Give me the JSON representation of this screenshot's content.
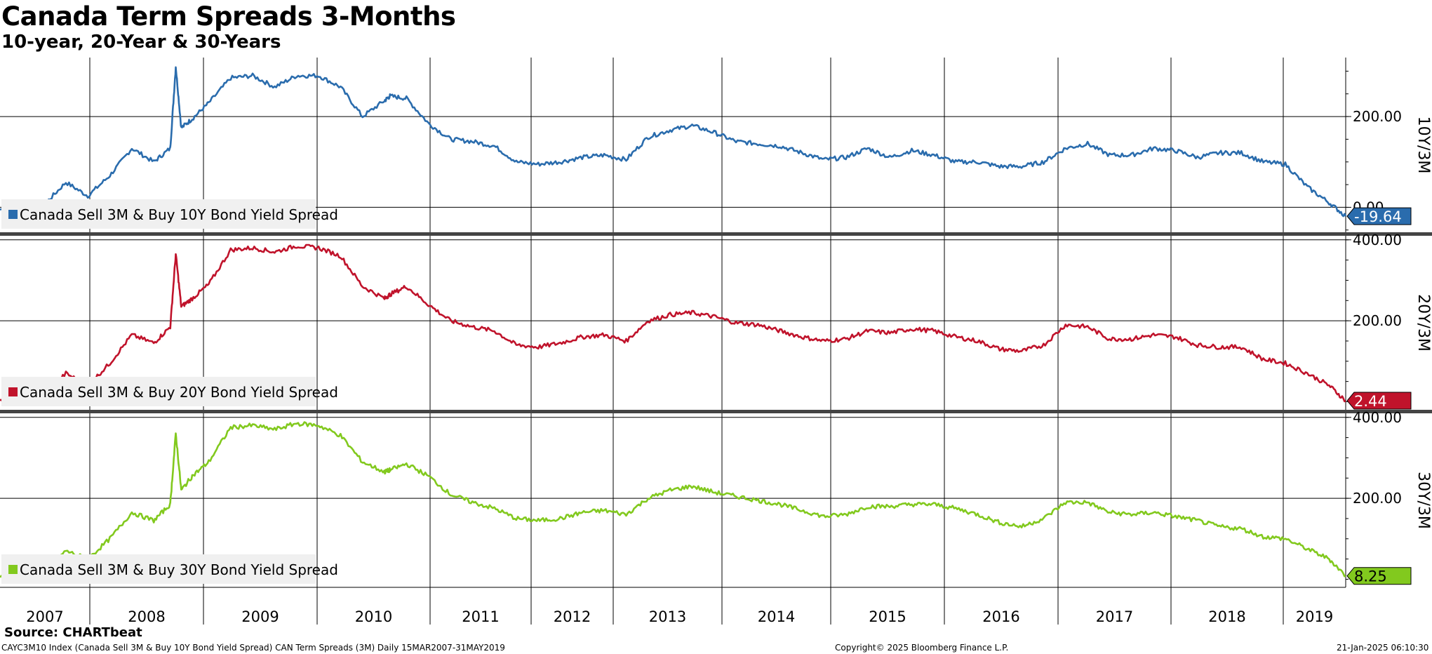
{
  "header": {
    "title": "Canada Term Spreads 3-Months",
    "subtitle": "10-year, 20-Year & 30-Years"
  },
  "footer": {
    "source": "Source: CHARTbeat",
    "description": "CAYC3M10 Index (Canada Sell 3M & Buy 10Y Bond Yield Spread) CAN Term Spreads (3M)  Daily 15MAR2007-31MAY2019",
    "copyright": "Copyright© 2025 Bloomberg Finance L.P.",
    "timestamp": "21-Jan-2025 06:10:30"
  },
  "chart_data": {
    "type": "line",
    "x_axis": {
      "tick_labels": [
        "2007",
        "2008",
        "2009",
        "2010",
        "2011",
        "2012",
        "2013",
        "2014",
        "2015",
        "2016",
        "2017",
        "2018",
        "2019"
      ],
      "range": [
        2007.2,
        2019.45
      ]
    },
    "panels": [
      {
        "name": "Canada Sell 3M & Buy 10Y Bond Yield Spread",
        "axis_label": "10Y/3M",
        "color": "#2a6cad",
        "ylim": [
          -55,
          330
        ],
        "ticks": [
          0,
          200
        ],
        "tick_labels": [
          "0.00",
          "200.00"
        ],
        "last_value_label": "-19.64",
        "x": [
          2007.2,
          2007.4,
          2007.6,
          2007.8,
          2008.0,
          2008.2,
          2008.4,
          2008.6,
          2008.75,
          2008.8,
          2008.85,
          2008.95,
          2009.1,
          2009.3,
          2009.5,
          2009.7,
          2009.9,
          2010.1,
          2010.3,
          2010.5,
          2010.7,
          2010.75,
          2010.9,
          2011.1,
          2011.3,
          2011.5,
          2011.7,
          2011.9,
          2012.1,
          2012.3,
          2012.5,
          2012.7,
          2012.9,
          2013.1,
          2013.3,
          2013.5,
          2013.7,
          2013.9,
          2014.1,
          2014.3,
          2014.5,
          2014.7,
          2014.9,
          2015.1,
          2015.3,
          2015.5,
          2015.7,
          2015.9,
          2016.1,
          2016.3,
          2016.5,
          2016.7,
          2016.9,
          2017.1,
          2017.3,
          2017.5,
          2017.7,
          2017.9,
          2018.1,
          2018.3,
          2018.5,
          2018.7,
          2018.9,
          2019.1,
          2019.3,
          2019.45
        ],
        "values": [
          -5,
          10,
          5,
          55,
          25,
          70,
          130,
          100,
          130,
          310,
          175,
          195,
          230,
          285,
          290,
          265,
          290,
          290,
          265,
          200,
          235,
          245,
          240,
          185,
          150,
          145,
          135,
          100,
          95,
          100,
          110,
          115,
          105,
          155,
          170,
          180,
          165,
          145,
          140,
          135,
          120,
          105,
          110,
          130,
          110,
          125,
          115,
          100,
          100,
          90,
          90,
          100,
          130,
          140,
          115,
          115,
          130,
          125,
          110,
          120,
          120,
          100,
          95,
          45,
          10,
          -19.64
        ]
      },
      {
        "name": "Canada Sell 3M & Buy 20Y Bond Yield Spread",
        "axis_label": "20Y/3M",
        "color": "#c0132b",
        "ylim": [
          -20,
          410
        ],
        "ticks": [
          200,
          400
        ],
        "tick_labels": [
          "200.00",
          "400.00"
        ],
        "last_value_label": "2.44",
        "x": [
          2007.2,
          2007.4,
          2007.6,
          2007.8,
          2008.0,
          2008.2,
          2008.4,
          2008.6,
          2008.75,
          2008.8,
          2008.85,
          2008.95,
          2009.1,
          2009.3,
          2009.5,
          2009.7,
          2009.9,
          2010.1,
          2010.3,
          2010.5,
          2010.7,
          2010.75,
          2010.9,
          2011.1,
          2011.3,
          2011.5,
          2011.7,
          2011.9,
          2012.1,
          2012.3,
          2012.5,
          2012.7,
          2012.9,
          2013.1,
          2013.3,
          2013.5,
          2013.7,
          2013.9,
          2014.1,
          2014.3,
          2014.5,
          2014.7,
          2014.9,
          2015.1,
          2015.3,
          2015.5,
          2015.7,
          2015.9,
          2016.1,
          2016.3,
          2016.5,
          2016.7,
          2016.9,
          2017.1,
          2017.3,
          2017.5,
          2017.7,
          2017.9,
          2018.1,
          2018.3,
          2018.5,
          2018.7,
          2018.9,
          2019.1,
          2019.3,
          2019.45
        ],
        "values": [
          5,
          20,
          15,
          70,
          40,
          95,
          165,
          145,
          185,
          365,
          235,
          255,
          290,
          375,
          380,
          370,
          385,
          380,
          360,
          285,
          255,
          265,
          285,
          240,
          200,
          185,
          175,
          140,
          135,
          145,
          160,
          165,
          150,
          200,
          215,
          220,
          210,
          195,
          190,
          175,
          160,
          150,
          155,
          175,
          170,
          180,
          175,
          160,
          150,
          130,
          125,
          140,
          190,
          185,
          155,
          155,
          165,
          160,
          140,
          135,
          135,
          105,
          95,
          70,
          40,
          2.44
        ]
      },
      {
        "name": "Canada Sell 3M & Buy 30Y Bond Yield Spread",
        "axis_label": "30Y/3M",
        "color": "#82c91e",
        "ylim": [
          -20,
          410
        ],
        "ticks": [
          200,
          400
        ],
        "tick_labels": [
          "200.00",
          "400.00"
        ],
        "last_value_label": "8.25",
        "x": [
          2007.2,
          2007.4,
          2007.6,
          2007.8,
          2008.0,
          2008.2,
          2008.4,
          2008.6,
          2008.75,
          2008.8,
          2008.85,
          2008.95,
          2009.1,
          2009.3,
          2009.5,
          2009.7,
          2009.9,
          2010.1,
          2010.3,
          2010.5,
          2010.7,
          2010.75,
          2010.9,
          2011.1,
          2011.3,
          2011.5,
          2011.7,
          2011.9,
          2012.1,
          2012.3,
          2012.5,
          2012.7,
          2012.9,
          2013.1,
          2013.3,
          2013.5,
          2013.7,
          2013.9,
          2014.1,
          2014.3,
          2014.5,
          2014.7,
          2014.9,
          2015.1,
          2015.3,
          2015.5,
          2015.7,
          2015.9,
          2016.1,
          2016.3,
          2016.5,
          2016.7,
          2016.9,
          2017.1,
          2017.3,
          2017.5,
          2017.7,
          2017.9,
          2018.1,
          2018.3,
          2018.5,
          2018.7,
          2018.9,
          2019.1,
          2019.3,
          2019.45
        ],
        "values": [
          5,
          25,
          20,
          70,
          50,
          100,
          165,
          145,
          185,
          360,
          220,
          255,
          290,
          375,
          380,
          370,
          385,
          380,
          355,
          290,
          265,
          270,
          285,
          255,
          210,
          190,
          175,
          150,
          145,
          150,
          165,
          170,
          160,
          200,
          220,
          230,
          215,
          205,
          195,
          185,
          170,
          155,
          160,
          180,
          180,
          185,
          185,
          175,
          160,
          140,
          130,
          150,
          190,
          190,
          165,
          160,
          165,
          155,
          145,
          130,
          125,
          105,
          100,
          75,
          50,
          8.25
        ]
      }
    ]
  }
}
